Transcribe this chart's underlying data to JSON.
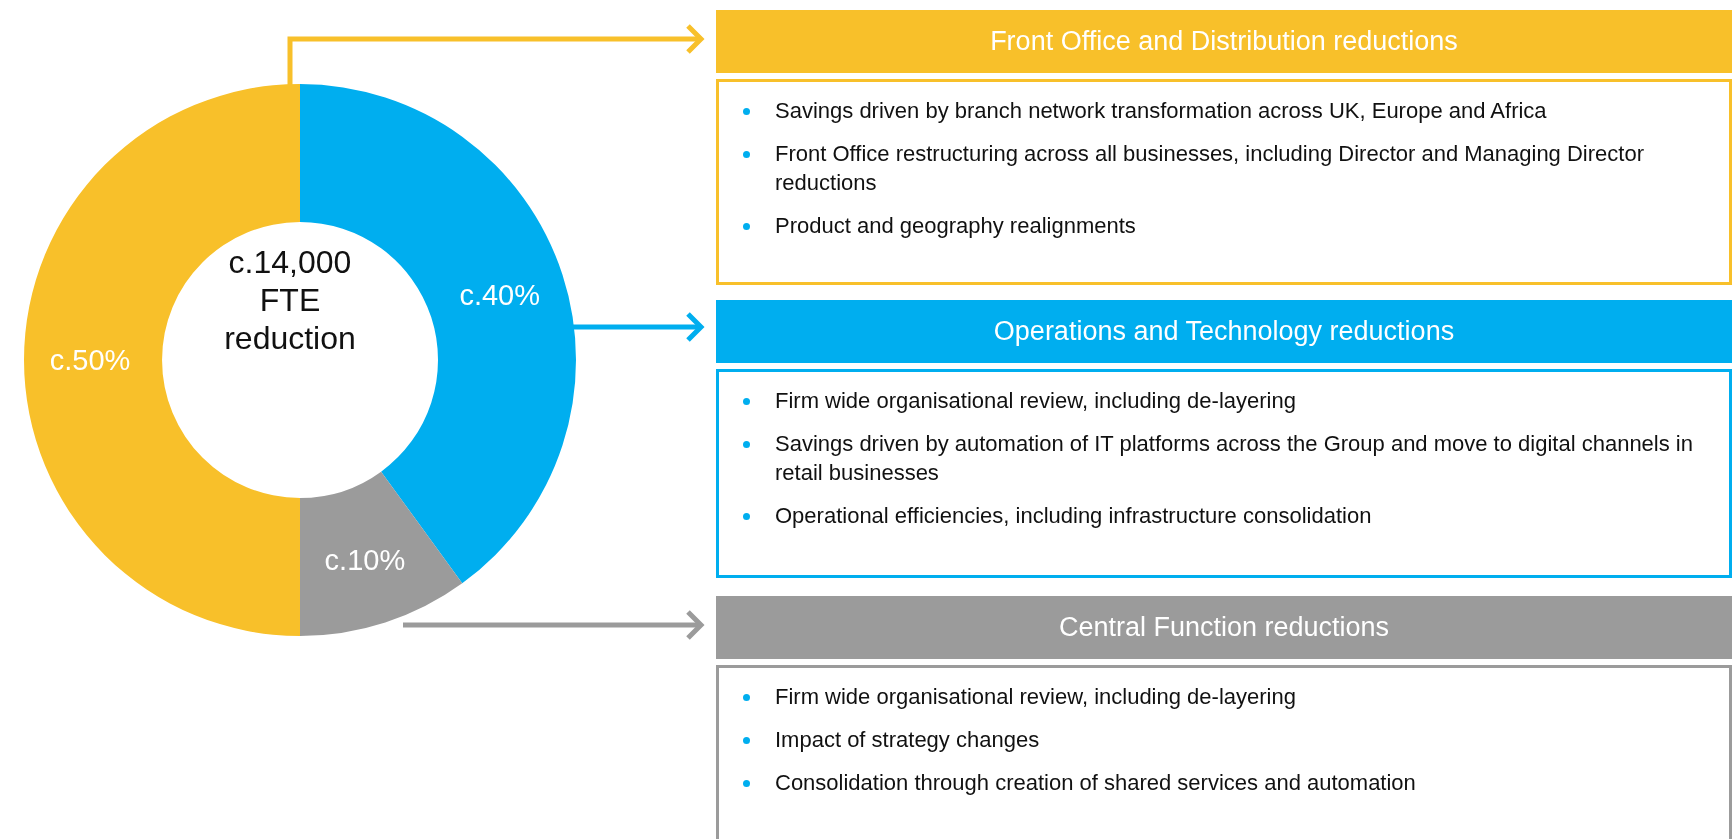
{
  "chart_data": {
    "type": "donut",
    "title": "c.14,000 FTE reduction",
    "categories": [
      null,
      null,
      null
    ],
    "values": [
      50,
      40,
      10
    ],
    "value_labels": [
      "c.50%",
      "c.40%",
      "c.10%"
    ],
    "colors": [
      "#f8c02a",
      "#00aeef",
      "#9b9b9b"
    ],
    "annotations": [
      "Front Office and Distribution reductions",
      "Savings driven by branch network transformation across UK, Europe and Africa",
      "Front Office restructuring across all businesses, including Director and Managing Director reductions",
      "Product and geography realignments",
      "Operations and Technology reductions",
      "Firm wide organisational review, including de-layering",
      "Savings driven by automation of IT platforms across the Group and move to digital channels in retail businesses",
      "Operational efficiencies, including infrastructure consolidation",
      "Central Function reductions",
      "Firm wide organisational review, including de-layering",
      "Impact of strategy changes",
      "Consolidation through creation of shared services and automation"
    ]
  }
}
